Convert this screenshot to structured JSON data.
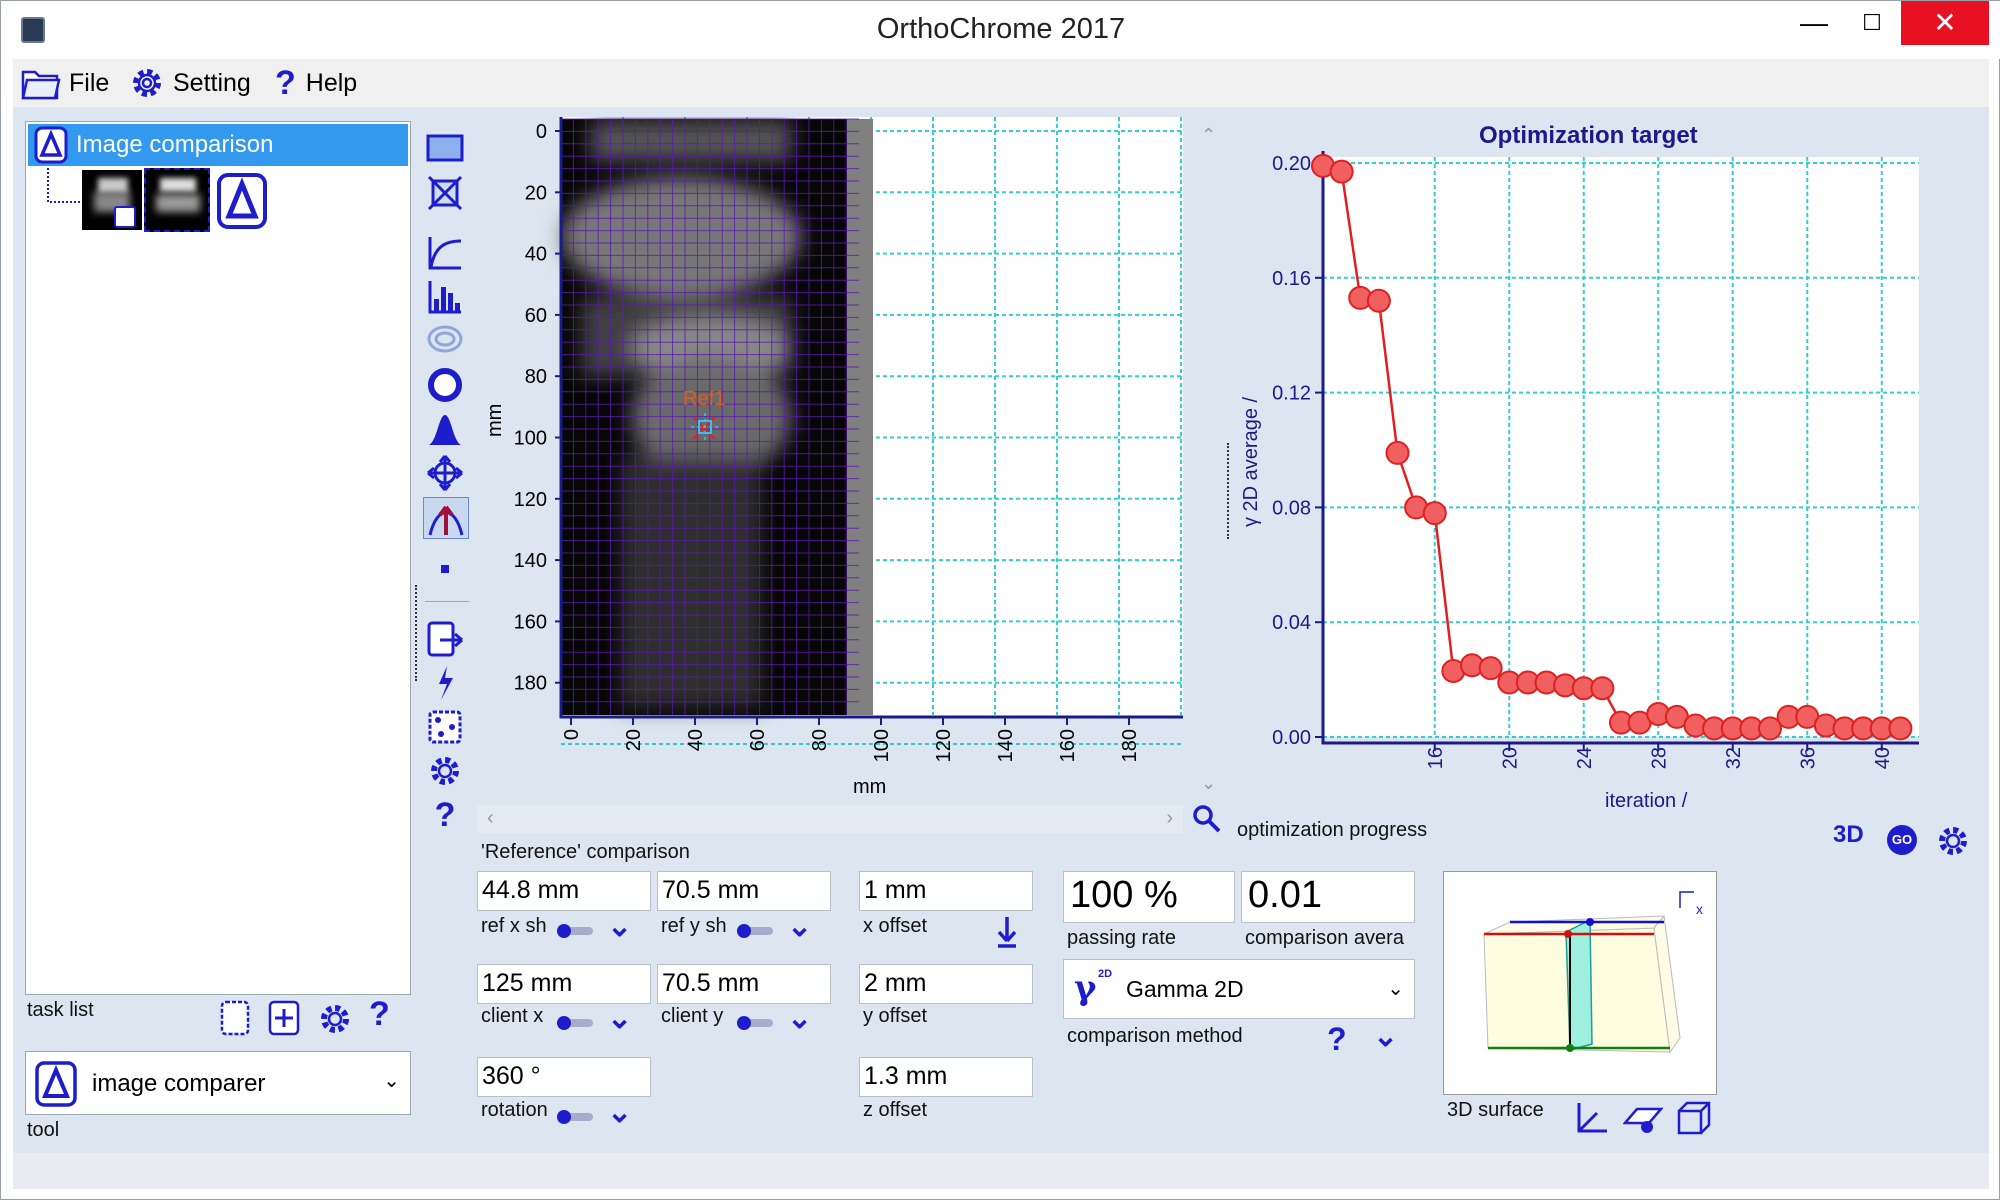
{
  "window": {
    "title": "OrthoChrome 2017"
  },
  "menu": {
    "file": "File",
    "setting": "Setting",
    "help": "Help"
  },
  "task_tree": {
    "root": "Image comparison",
    "label": "task list"
  },
  "tool": {
    "selected": "image comparer",
    "label": "tool"
  },
  "image_plot": {
    "y_ticks": [
      "0",
      "20",
      "40",
      "60",
      "80",
      "100",
      "120",
      "140",
      "160",
      "180"
    ],
    "x_ticks": [
      "0",
      "20",
      "40",
      "60",
      "80",
      "100",
      "120",
      "140",
      "160",
      "180"
    ],
    "x_label": "mm",
    "y_label": "mm",
    "marker": "Ref1"
  },
  "chart_data": {
    "type": "line",
    "title": "Optimization target",
    "xlabel": "iteration /",
    "ylabel": "γ 2D average /",
    "x_ticks": [
      "16",
      "20",
      "24",
      "28",
      "32",
      "36",
      "40"
    ],
    "y_ticks": [
      "0.00",
      "0.04",
      "0.08",
      "0.12",
      "0.16",
      "0.20"
    ],
    "xlim": [
      10,
      42
    ],
    "ylim": [
      0,
      0.2
    ],
    "grid": true,
    "x": [
      10,
      11,
      12,
      13,
      14,
      15,
      16,
      17,
      18,
      19,
      20,
      21,
      22,
      23,
      24,
      25,
      26,
      27,
      28,
      29,
      30,
      31,
      32,
      33,
      34,
      35,
      36,
      37,
      38,
      39,
      40,
      41
    ],
    "values": [
      0.199,
      0.197,
      0.153,
      0.152,
      0.099,
      0.08,
      0.078,
      0.023,
      0.025,
      0.024,
      0.019,
      0.019,
      0.019,
      0.018,
      0.017,
      0.017,
      0.005,
      0.005,
      0.008,
      0.007,
      0.004,
      0.003,
      0.003,
      0.003,
      0.003,
      0.007,
      0.007,
      0.004,
      0.003,
      0.003,
      0.003,
      0.003
    ],
    "series_color": "#e02020",
    "marker_color": "#f06060"
  },
  "chart_caption": "optimization progress",
  "comparison": {
    "section": "'Reference' comparison",
    "ref_x": {
      "value": "44.8 mm",
      "label": "ref x sh"
    },
    "ref_y": {
      "value": "70.5 mm",
      "label": "ref y sh"
    },
    "x_offset": {
      "value": "1 mm",
      "label": "x offset"
    },
    "client_x": {
      "value": "125 mm",
      "label": "client x"
    },
    "client_y": {
      "value": "70.5 mm",
      "label": "client y"
    },
    "y_offset": {
      "value": "2 mm",
      "label": "y offset"
    },
    "rotation": {
      "value": "360 °",
      "label": "rotation"
    },
    "z_offset": {
      "value": "1.3 mm",
      "label": "z offset"
    }
  },
  "results": {
    "passing_rate": {
      "value": "100 %",
      "label": "passing rate"
    },
    "comparison_avg": {
      "value": "0.01",
      "label": "comparison avera"
    },
    "method": {
      "value": "Gamma 2D",
      "label": "comparison method",
      "symbol": "γ",
      "sup": "2D"
    }
  },
  "surface": {
    "label": "3D surface",
    "axis": "x"
  },
  "icons": {
    "go": "GO",
    "three_d": "3D"
  }
}
